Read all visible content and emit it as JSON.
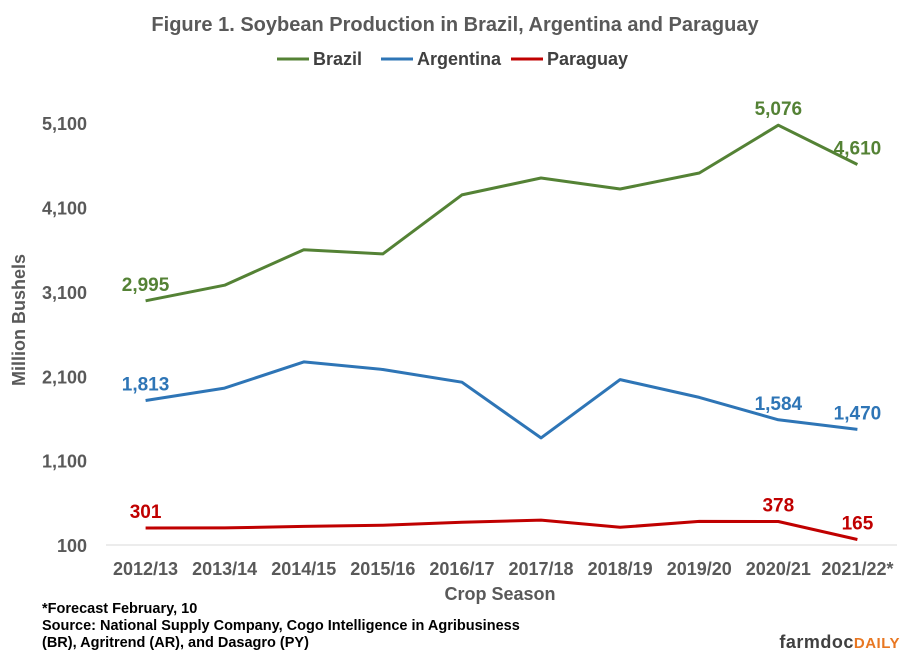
{
  "chart_data": {
    "type": "line",
    "title": "Figure  1. Soybean Production  in Brazil, Argentina  and Paraguay",
    "xlabel": "Crop Season",
    "ylabel": "Million Bushels",
    "ylim": [
      100,
      5600
    ],
    "yticks": [
      "100",
      "1,100",
      "2,100",
      "3,100",
      "4,100",
      "5,100"
    ],
    "ytick_values": [
      100,
      1100,
      2100,
      3100,
      4100,
      5100
    ],
    "legend_position": "top-center",
    "categories": [
      "2012/13",
      "2013/14",
      "2014/15",
      "2015/16",
      "2016/17",
      "2017/18",
      "2018/19",
      "2019/20",
      "2020/21",
      "2021/22*"
    ],
    "series": [
      {
        "name": "Brazil",
        "color": "#548235",
        "values": [
          2995,
          3180,
          3600,
          3550,
          4250,
          4450,
          4320,
          4510,
          5076,
          4610
        ],
        "labels": [
          {
            "index": 0,
            "text": "2,995"
          },
          {
            "index": 8,
            "text": "5,076"
          },
          {
            "index": 9,
            "text": "4,610"
          }
        ]
      },
      {
        "name": "Argentina",
        "color": "#2e75b6",
        "values": [
          1813,
          1960,
          2270,
          2180,
          2030,
          1370,
          2060,
          1850,
          1584,
          1470
        ],
        "labels": [
          {
            "index": 0,
            "text": "1,813"
          },
          {
            "index": 8,
            "text": "1,584"
          },
          {
            "index": 9,
            "text": "1,470"
          }
        ]
      },
      {
        "name": "Paraguay",
        "color": "#c00000",
        "values": [
          301,
          303,
          320,
          335,
          370,
          395,
          310,
          380,
          378,
          165
        ],
        "labels": [
          {
            "index": 0,
            "text": "301"
          },
          {
            "index": 8,
            "text": "378"
          },
          {
            "index": 9,
            "text": "165"
          }
        ]
      }
    ]
  },
  "notes": {
    "line1": "*Forecast February, 10",
    "line2": "Source: National Supply Company,  Cogo Intelligence in Agribusiness",
    "line3": "(BR), Agritrend (AR), and Dasagro (PY)"
  },
  "brand": {
    "part1": "farmdoc",
    "part2": "DAILY"
  }
}
